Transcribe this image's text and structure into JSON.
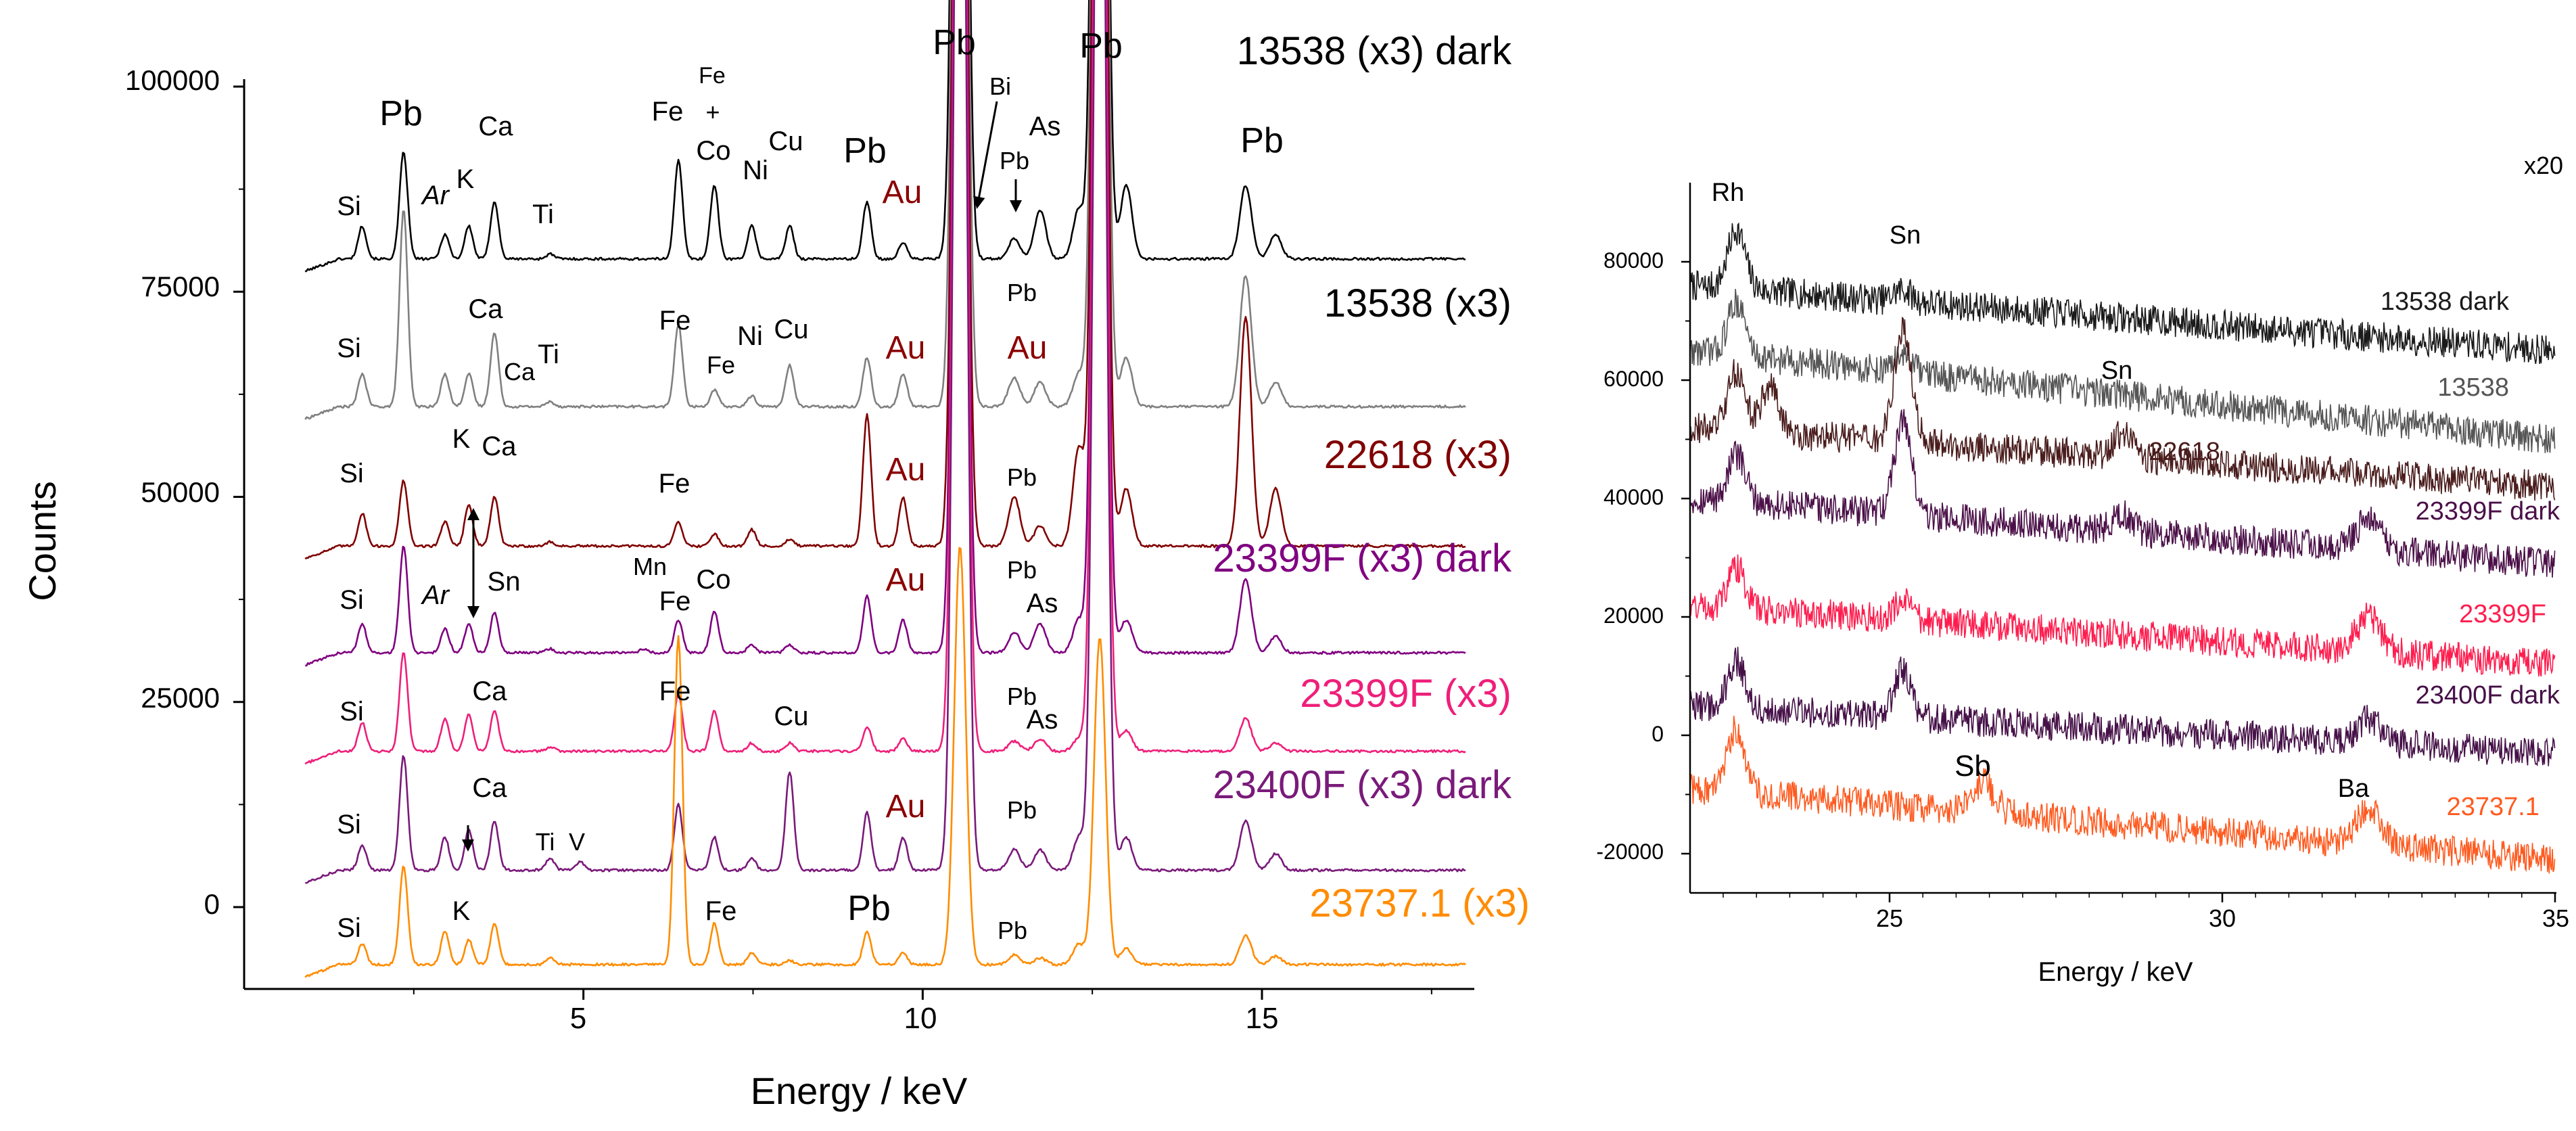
{
  "colors": {
    "axis": "#000000",
    "s_13538_dark": "#000000",
    "s_13538": "#808080",
    "s_22618": "#800000",
    "s_23399F_dark": "#800080",
    "s_23399F": "#ee1f7a",
    "s_23400F_dark": "#7a1a7a",
    "s_23737": "#ff8c00",
    "r_13538_dark": "#1a1a1a",
    "r_13538": "#555555",
    "r_22618": "#4a1c1c",
    "r_23399F_dark": "#4b1048",
    "r_23399F": "#ff1d4e",
    "r_23400F_dark": "#451047",
    "r_23737": "#ff5a1f",
    "au": "#8b0000"
  },
  "chart_data": [
    {
      "type": "line",
      "title": "",
      "xlabel": "Energy / keV",
      "ylabel": "Counts",
      "xlim": [
        0,
        18
      ],
      "ylim": [
        -10000,
        100000
      ],
      "xticks": [
        "5",
        "10",
        "15"
      ],
      "yticks": [
        "0",
        "25000",
        "50000",
        "75000",
        "100000"
      ],
      "peak_positions_keV": [
        1.74,
        2.35,
        2.96,
        3.31,
        3.69,
        4.51,
        4.95,
        5.41,
        5.9,
        6.4,
        6.93,
        7.48,
        8.04,
        9.18,
        9.71,
        10.55,
        11.35,
        11.73,
        12.3,
        12.61,
        13.0,
        14.76,
        15.2
      ],
      "series": [
        {
          "name": "13538 (x3) dark",
          "baseline": 79000,
          "heights": [
            4000,
            13000,
            3000,
            4000,
            7000,
            600,
            0,
            0,
            0,
            12000,
            9000,
            4000,
            4000,
            7000,
            2000,
            170000,
            2500,
            6000,
            6000,
            170000,
            9000,
            9000,
            3000
          ]
        },
        {
          "name": "13538 (x3)",
          "baseline": 61000,
          "heights": [
            4000,
            24000,
            4000,
            4000,
            9000,
            600,
            0,
            0,
            0,
            10000,
            2000,
            1300,
            5000,
            6000,
            4000,
            180000,
            3500,
            3000,
            4000,
            190000,
            6000,
            16000,
            3000
          ]
        },
        {
          "name": "22618 (x3)",
          "baseline": 44000,
          "heights": [
            4000,
            8000,
            3000,
            5000,
            6000,
            500,
            0,
            0,
            0,
            3000,
            1500,
            2000,
            800,
            16000,
            6000,
            180000,
            6000,
            2500,
            12000,
            190000,
            7000,
            28000,
            7000
          ]
        },
        {
          "name": "23399F (x3) dark",
          "baseline": 31000,
          "heights": [
            3500,
            13000,
            3000,
            3500,
            5000,
            500,
            0,
            0,
            500,
            4000,
            5000,
            1000,
            1000,
            7000,
            4000,
            180000,
            2500,
            3500,
            4000,
            180000,
            4000,
            9000,
            2000
          ]
        },
        {
          "name": "23399F (x3)",
          "baseline": 19000,
          "heights": [
            3500,
            12000,
            4000,
            4500,
            5000,
            500,
            0,
            0,
            0,
            7000,
            5000,
            1000,
            1000,
            3000,
            1500,
            180000,
            1200,
            1500,
            1500,
            180000,
            2500,
            4000,
            1000
          ]
        },
        {
          "name": "23400F (x3) dark",
          "baseline": 4500,
          "heights": [
            3000,
            14000,
            4000,
            5000,
            6000,
            1500,
            1000,
            0,
            0,
            8000,
            4000,
            1500,
            12000,
            7000,
            4000,
            180000,
            2500,
            2500,
            4000,
            170000,
            4000,
            6000,
            2000
          ]
        },
        {
          "name": "23737.1 (x3)",
          "baseline": -7000,
          "heights": [
            2500,
            12000,
            4000,
            3000,
            5000,
            800,
            0,
            0,
            0,
            40000,
            5000,
            1500,
            500,
            4000,
            1500,
            51000,
            1200,
            800,
            2500,
            40000,
            2000,
            3500,
            1000
          ]
        }
      ],
      "curve_labels": [
        "13538 (x3) dark",
        "13538 (x3)",
        "22618 (x3)",
        "23399F (x3) dark",
        "23399F (x3)",
        "23400F (x3) dark",
        "23737.1 (x3)"
      ],
      "annotations": {
        "r1": [
          "Si",
          "Pb",
          "Ar",
          "K",
          "Ca",
          "Ti",
          "Fe",
          "Fe",
          "+",
          "Co",
          "Ni",
          "Cu",
          "Pb",
          "Au",
          "Pb",
          "Bi",
          "Pb",
          "As",
          "Pb",
          "Pb"
        ],
        "r2": [
          "Si",
          "Ca",
          "Ca",
          "Ti",
          "Fe",
          "Fe",
          "Ni",
          "Cu",
          "Au",
          "Pb",
          "Au"
        ],
        "r3": [
          "Si",
          "K",
          "Ca",
          "Fe",
          "Au",
          "Pb"
        ],
        "r4": [
          "Si",
          "Ar",
          "Sn",
          "Mn",
          "Fe",
          "Co",
          "Au",
          "Pb",
          "As"
        ],
        "r5": [
          "Si",
          "Ca",
          "Fe",
          "Cu",
          "Pb",
          "As"
        ],
        "r6": [
          "Si",
          "Ca",
          "Ti",
          "V",
          "Au",
          "Pb"
        ],
        "r7": [
          "Si",
          "K",
          "Fe",
          "Pb",
          "Pb"
        ]
      }
    },
    {
      "type": "line",
      "title": "",
      "xlabel": "Energy / keV",
      "ylabel": "",
      "scale_note": "x20",
      "xlim": [
        22,
        35
      ],
      "ylim": [
        -27000,
        90000
      ],
      "xticks": [
        "25",
        "30",
        "35"
      ],
      "yticks": [
        "-20000",
        "0",
        "20000",
        "40000",
        "60000",
        "80000"
      ],
      "peak_positions_keV": [
        22.7,
        23.2,
        25.2,
        26.4,
        28.5,
        32.2
      ],
      "series": [
        {
          "name": "13538 dark",
          "start": 76000,
          "end": 65000,
          "heights": [
            10000,
            0,
            2000,
            0,
            0,
            0
          ]
        },
        {
          "name": "13538",
          "start": 65000,
          "end": 50000,
          "heights": [
            9000,
            0,
            3000,
            0,
            0,
            0
          ]
        },
        {
          "name": "22618",
          "start": 52000,
          "end": 42000,
          "heights": [
            10000,
            8000,
            19000,
            0,
            4000,
            0
          ]
        },
        {
          "name": "23399F dark",
          "start": 40000,
          "end": 29000,
          "heights": [
            8000,
            0,
            16000,
            0,
            3000,
            5000
          ]
        },
        {
          "name": "23399F",
          "start": 22000,
          "end": 12000,
          "heights": [
            7000,
            0,
            3000,
            0,
            0,
            6000
          ]
        },
        {
          "name": "23400F dark",
          "start": 5000,
          "end": -3000,
          "heights": [
            8000,
            0,
            8000,
            0,
            0,
            4000
          ]
        },
        {
          "name": "23737.1",
          "start": -9000,
          "end": -21000,
          "heights": [
            11000,
            0,
            0,
            5000,
            0,
            6000
          ]
        }
      ],
      "curve_labels": [
        "13538 dark",
        "13538",
        "22618",
        "23399F dark",
        "23399F",
        "23400F dark",
        "23737.1"
      ],
      "annotations": [
        "Rh",
        "Sn",
        "Sn",
        "Sb",
        "Ba"
      ]
    }
  ]
}
